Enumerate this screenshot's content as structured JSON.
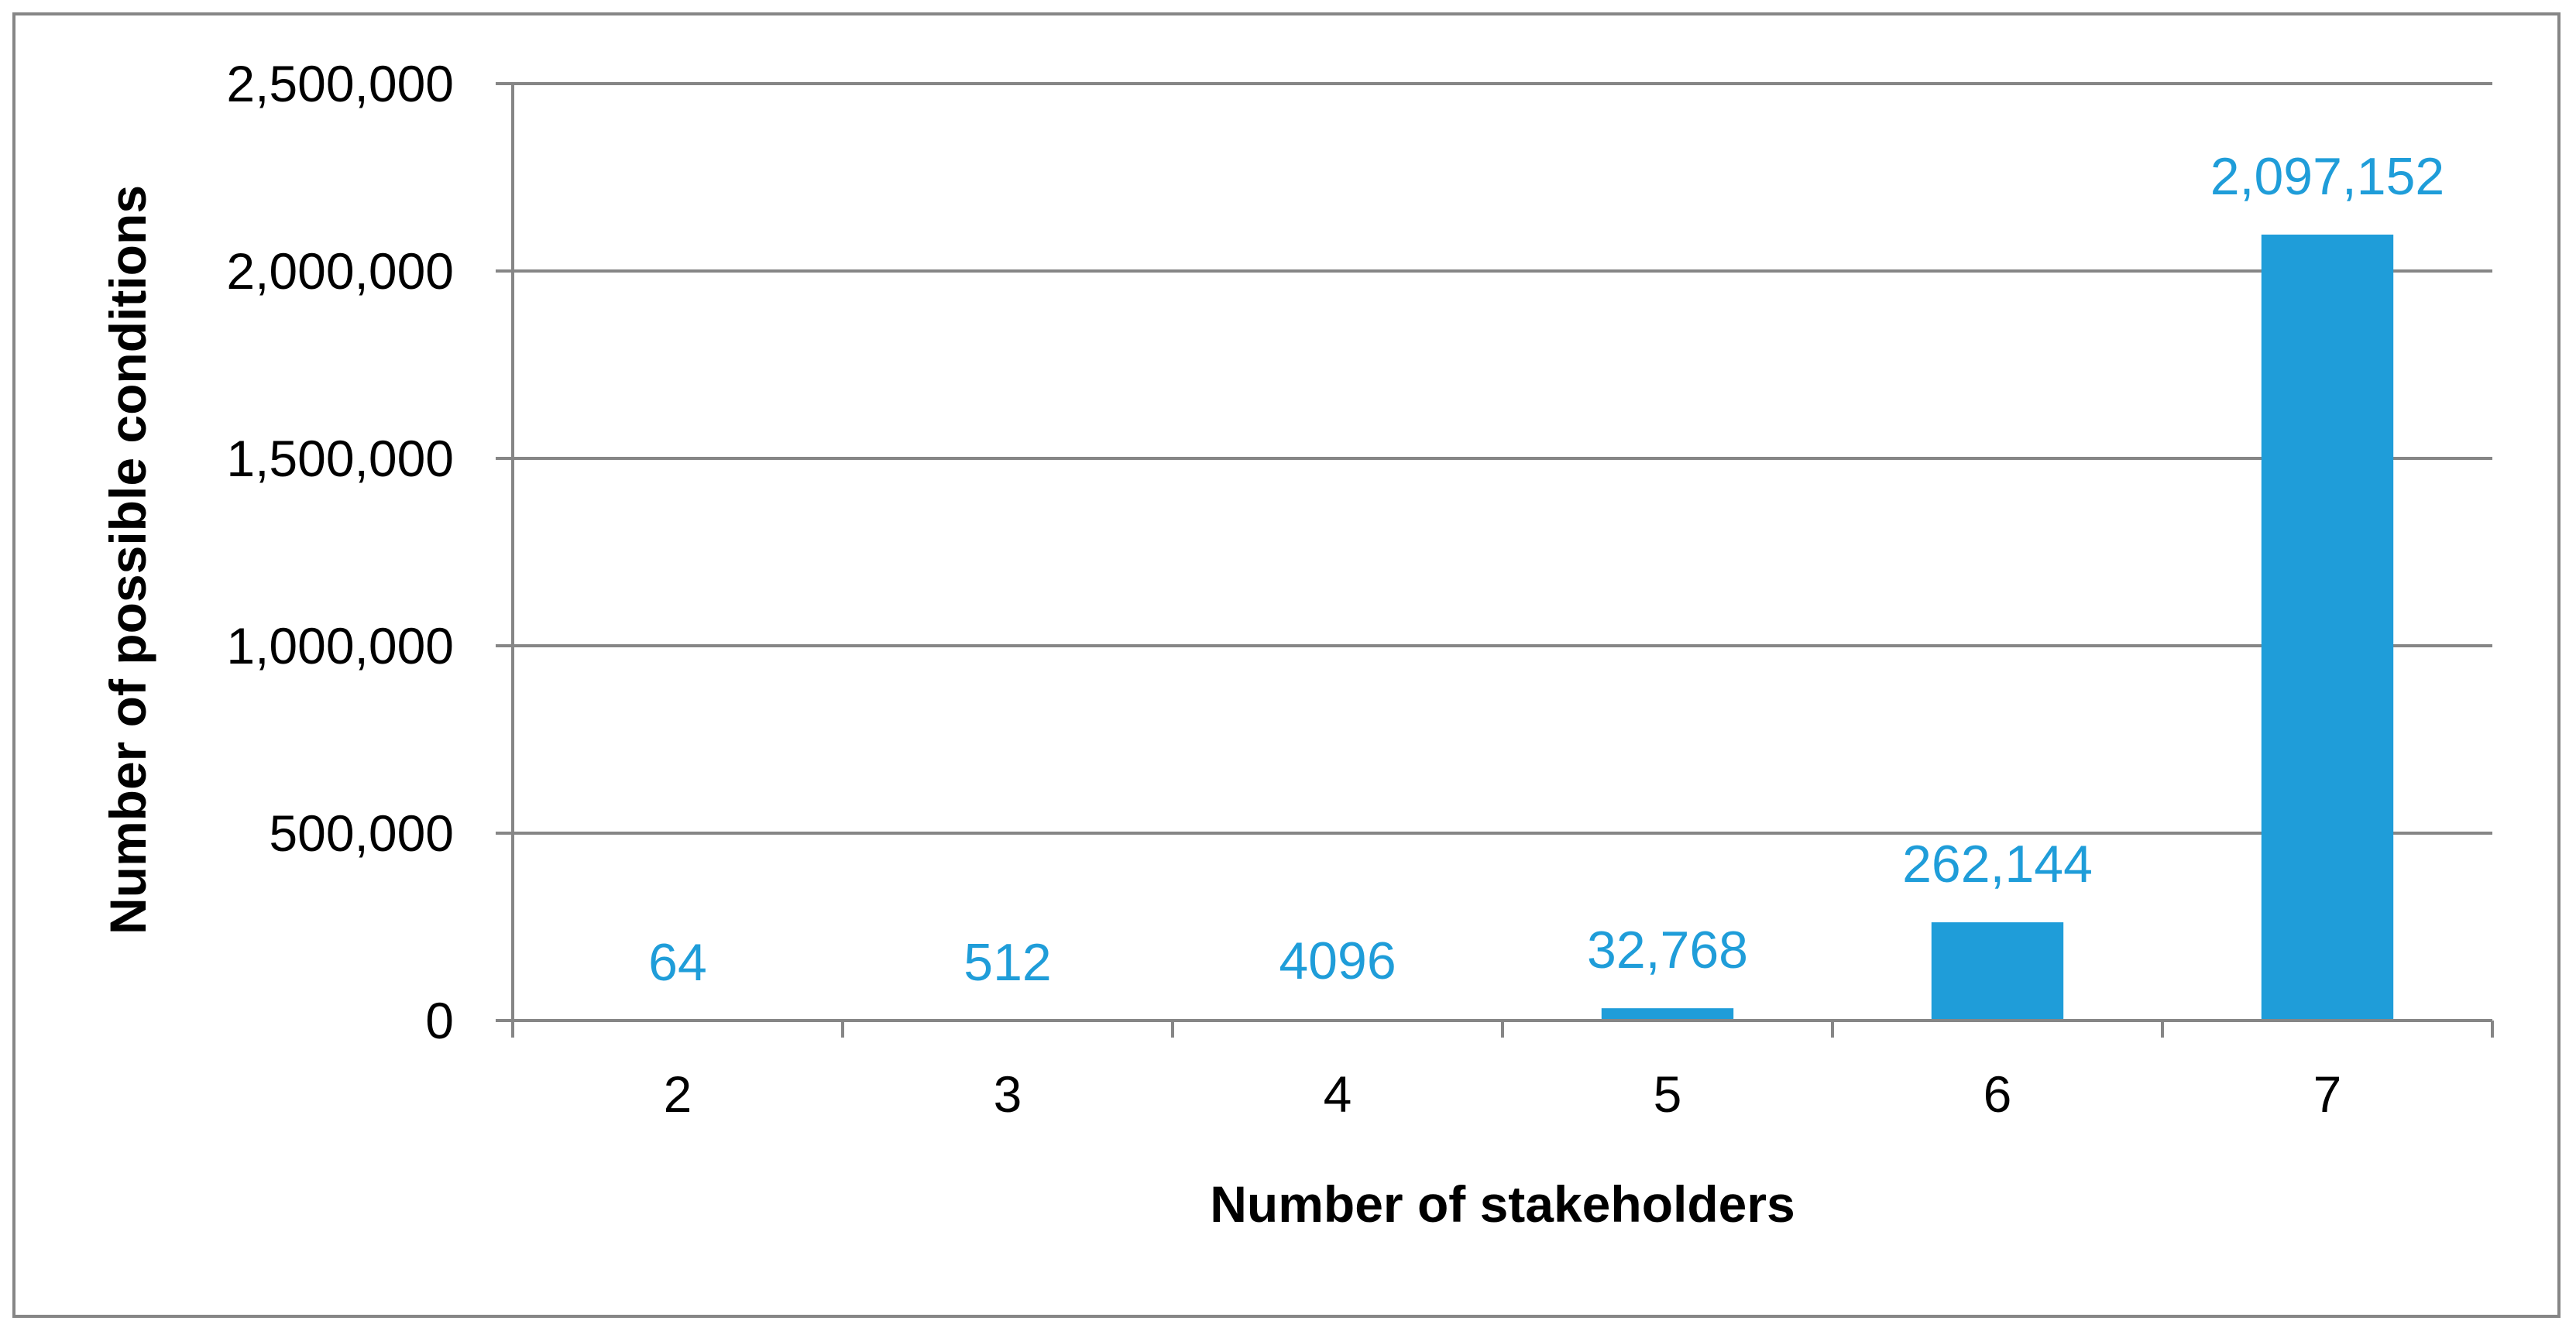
{
  "chart_data": {
    "type": "bar",
    "categories": [
      "2",
      "3",
      "4",
      "5",
      "6",
      "7"
    ],
    "values": [
      64,
      512,
      4096,
      32768,
      262144,
      2097152
    ],
    "data_labels": [
      "64",
      "512",
      "4096",
      "32,768",
      "262,144",
      "2,097,152"
    ],
    "xlabel": "Number of stakeholders",
    "ylabel": "Number of possible conditions",
    "ylim": [
      0,
      2500000
    ],
    "yticks": [
      0,
      500000,
      1000000,
      1500000,
      2000000,
      2500000
    ],
    "ytick_labels": [
      "0",
      "500,000",
      "1,000,000",
      "1,500,000",
      "2,000,000",
      "2,500,000"
    ],
    "grid": true,
    "legend": "none",
    "colors": {
      "bar": "#1f9dd9",
      "data_label": "#1f9dd9",
      "gridline": "#868686",
      "axis": "#868686",
      "border": "#868686"
    }
  }
}
